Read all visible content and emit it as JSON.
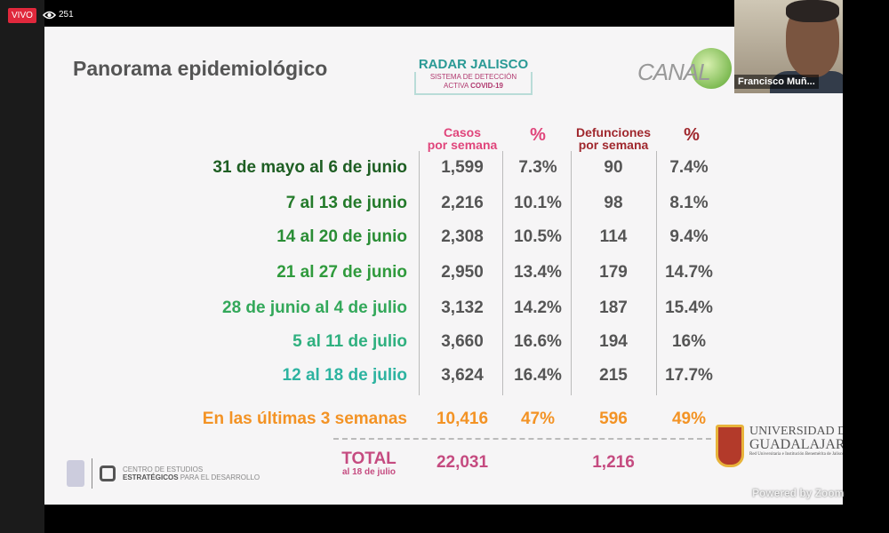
{
  "stream": {
    "live_label": "VIVO",
    "viewers": "251"
  },
  "participant": {
    "name": "Francisco Muñ..."
  },
  "slide": {
    "title": "Panorama epidemiológico",
    "radar": {
      "title": "RADAR JALISCO",
      "line1": "SISTEMA DE DETECCIÓN",
      "line2": "ACTIVA",
      "line2b": "COVID-19"
    },
    "canal_logo": "CANAL 44",
    "headers": {
      "cases": "Casos",
      "cases2": "por semana",
      "pct": "%",
      "deaths": "Defunciones",
      "deaths2": "por semana",
      "pct2": "%"
    },
    "rows": [
      {
        "label": "31 de mayo al 6 de junio",
        "cases": "1,599",
        "pct": "7.3%",
        "deaths": "90",
        "dpct": "7.4%",
        "color": "#1e5e23"
      },
      {
        "label": "7 al 13 de junio",
        "cases": "2,216",
        "pct": "10.1%",
        "deaths": "98",
        "dpct": "8.1%",
        "color": "#237a2a"
      },
      {
        "label": "14 al 20 de junio",
        "cases": "2,308",
        "pct": "10.5%",
        "deaths": "114",
        "dpct": "9.4%",
        "color": "#2a8d35"
      },
      {
        "label": "21 al 27 de junio",
        "cases": "2,950",
        "pct": "13.4%",
        "deaths": "179",
        "dpct": "14.7%",
        "color": "#2f9a3c"
      },
      {
        "label": "28 de junio al 4 de julio",
        "cases": "3,132",
        "pct": "14.2%",
        "deaths": "187",
        "dpct": "15.4%",
        "color": "#33a85a"
      },
      {
        "label": "5 al 11 de julio",
        "cases": "3,660",
        "pct": "16.6%",
        "deaths": "194",
        "dpct": "16%",
        "color": "#2fb07f"
      },
      {
        "label": "12 al 18 de julio",
        "cases": "3,624",
        "pct": "16.4%",
        "deaths": "215",
        "dpct": "17.7%",
        "color": "#2db3a0"
      }
    ],
    "highlight": {
      "label": "En las últimas 3 semanas",
      "cases": "10,416",
      "pct": "47%",
      "deaths": "596",
      "dpct": "49%"
    },
    "total": {
      "label": "TOTAL",
      "sub": "al 18 de julio",
      "cases": "22,031",
      "deaths": "1,216"
    },
    "footer": {
      "cede1": "CENTRO DE ESTUDIOS",
      "cede2": "ESTRATÉGICOS",
      "cede3": "PARA EL DESARROLLO",
      "udg1": "UNIVERSIDAD DE",
      "udg2": "GUADALAJARA",
      "udg3": "Red Universitaria e Institución Benemérita de Jalisco"
    }
  },
  "powered": "Powered by Zoom"
}
